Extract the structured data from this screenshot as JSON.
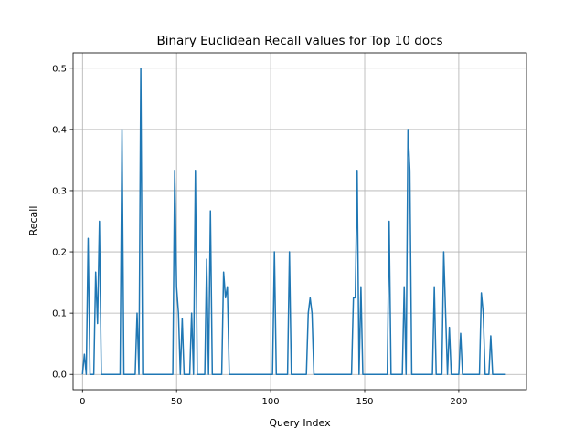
{
  "chart_data": {
    "type": "line",
    "title": "Binary Euclidean Recall values for Top 10 docs",
    "xlabel": "Query Index",
    "ylabel": "Recall",
    "xlim": [
      -5,
      236
    ],
    "ylim": [
      -0.025,
      0.525
    ],
    "grid": true,
    "legend": "none",
    "x_ticks": [
      0,
      50,
      100,
      150,
      200
    ],
    "y_ticks": [
      0.0,
      0.1,
      0.2,
      0.3,
      0.4,
      0.5
    ],
    "x_tick_labels": [
      "0",
      "50",
      "100",
      "150",
      "200"
    ],
    "y_tick_labels": [
      "0.0",
      "0.1",
      "0.2",
      "0.3",
      "0.4",
      "0.5"
    ],
    "series": [
      {
        "color": "#1f77b4",
        "points": [
          [
            0,
            0.0
          ],
          [
            1,
            0.033
          ],
          [
            2,
            0.0
          ],
          [
            3,
            0.222
          ],
          [
            4,
            0.0
          ],
          [
            5,
            0.0
          ],
          [
            6,
            0.0
          ],
          [
            7,
            0.167
          ],
          [
            8,
            0.083
          ],
          [
            9,
            0.25
          ],
          [
            10,
            0.0
          ],
          [
            11,
            0.0
          ],
          [
            12,
            0.0
          ],
          [
            13,
            0.0
          ],
          [
            14,
            0.0
          ],
          [
            15,
            0.0
          ],
          [
            16,
            0.0
          ],
          [
            17,
            0.0
          ],
          [
            18,
            0.0
          ],
          [
            19,
            0.0
          ],
          [
            20,
            0.0
          ],
          [
            21,
            0.4
          ],
          [
            22,
            0.0
          ],
          [
            23,
            0.0
          ],
          [
            24,
            0.0
          ],
          [
            25,
            0.0
          ],
          [
            26,
            0.0
          ],
          [
            27,
            0.0
          ],
          [
            28,
            0.0
          ],
          [
            29,
            0.1
          ],
          [
            30,
            0.0
          ],
          [
            31,
            0.5
          ],
          [
            32,
            0.0
          ],
          [
            33,
            0.0
          ],
          [
            34,
            0.0
          ],
          [
            35,
            0.0
          ],
          [
            36,
            0.0
          ],
          [
            37,
            0.0
          ],
          [
            38,
            0.0
          ],
          [
            39,
            0.0
          ],
          [
            40,
            0.0
          ],
          [
            41,
            0.0
          ],
          [
            42,
            0.0
          ],
          [
            43,
            0.0
          ],
          [
            44,
            0.0
          ],
          [
            45,
            0.0
          ],
          [
            46,
            0.0
          ],
          [
            47,
            0.0
          ],
          [
            48,
            0.0
          ],
          [
            49,
            0.333
          ],
          [
            50,
            0.143
          ],
          [
            51,
            0.1
          ],
          [
            52,
            0.0
          ],
          [
            53,
            0.091
          ],
          [
            54,
            0.0
          ],
          [
            55,
            0.0
          ],
          [
            56,
            0.0
          ],
          [
            57,
            0.0
          ],
          [
            58,
            0.1
          ],
          [
            59,
            0.0
          ],
          [
            60,
            0.333
          ],
          [
            61,
            0.0
          ],
          [
            62,
            0.0
          ],
          [
            63,
            0.0
          ],
          [
            64,
            0.0
          ],
          [
            65,
            0.0
          ],
          [
            66,
            0.188
          ],
          [
            67,
            0.0
          ],
          [
            68,
            0.267
          ],
          [
            69,
            0.0
          ],
          [
            70,
            0.0
          ],
          [
            71,
            0.0
          ],
          [
            72,
            0.0
          ],
          [
            73,
            0.0
          ],
          [
            74,
            0.0
          ],
          [
            75,
            0.167
          ],
          [
            76,
            0.125
          ],
          [
            77,
            0.143
          ],
          [
            78,
            0.0
          ],
          [
            79,
            0.0
          ],
          [
            80,
            0.0
          ],
          [
            81,
            0.0
          ],
          [
            82,
            0.0
          ],
          [
            83,
            0.0
          ],
          [
            84,
            0.0
          ],
          [
            85,
            0.0
          ],
          [
            86,
            0.0
          ],
          [
            87,
            0.0
          ],
          [
            88,
            0.0
          ],
          [
            89,
            0.0
          ],
          [
            90,
            0.0
          ],
          [
            91,
            0.0
          ],
          [
            92,
            0.0
          ],
          [
            93,
            0.0
          ],
          [
            94,
            0.0
          ],
          [
            95,
            0.0
          ],
          [
            96,
            0.0
          ],
          [
            97,
            0.0
          ],
          [
            98,
            0.0
          ],
          [
            99,
            0.0
          ],
          [
            100,
            0.0
          ],
          [
            101,
            0.0
          ],
          [
            102,
            0.2
          ],
          [
            103,
            0.0
          ],
          [
            104,
            0.0
          ],
          [
            105,
            0.0
          ],
          [
            106,
            0.0
          ],
          [
            107,
            0.0
          ],
          [
            108,
            0.0
          ],
          [
            109,
            0.0
          ],
          [
            110,
            0.2
          ],
          [
            111,
            0.0
          ],
          [
            112,
            0.0
          ],
          [
            113,
            0.0
          ],
          [
            114,
            0.0
          ],
          [
            115,
            0.0
          ],
          [
            116,
            0.0
          ],
          [
            117,
            0.0
          ],
          [
            118,
            0.0
          ],
          [
            119,
            0.0
          ],
          [
            120,
            0.1
          ],
          [
            121,
            0.125
          ],
          [
            122,
            0.1
          ],
          [
            123,
            0.0
          ],
          [
            124,
            0.0
          ],
          [
            125,
            0.0
          ],
          [
            126,
            0.0
          ],
          [
            127,
            0.0
          ],
          [
            128,
            0.0
          ],
          [
            129,
            0.0
          ],
          [
            130,
            0.0
          ],
          [
            131,
            0.0
          ],
          [
            132,
            0.0
          ],
          [
            133,
            0.0
          ],
          [
            134,
            0.0
          ],
          [
            135,
            0.0
          ],
          [
            136,
            0.0
          ],
          [
            137,
            0.0
          ],
          [
            138,
            0.0
          ],
          [
            139,
            0.0
          ],
          [
            140,
            0.0
          ],
          [
            141,
            0.0
          ],
          [
            142,
            0.0
          ],
          [
            143,
            0.0
          ],
          [
            144,
            0.125
          ],
          [
            145,
            0.125
          ],
          [
            146,
            0.333
          ],
          [
            147,
            0.0
          ],
          [
            148,
            0.143
          ],
          [
            149,
            0.0
          ],
          [
            150,
            0.0
          ],
          [
            151,
            0.0
          ],
          [
            152,
            0.0
          ],
          [
            153,
            0.0
          ],
          [
            154,
            0.0
          ],
          [
            155,
            0.0
          ],
          [
            156,
            0.0
          ],
          [
            157,
            0.0
          ],
          [
            158,
            0.0
          ],
          [
            159,
            0.0
          ],
          [
            160,
            0.0
          ],
          [
            161,
            0.0
          ],
          [
            162,
            0.0
          ],
          [
            163,
            0.25
          ],
          [
            164,
            0.0
          ],
          [
            165,
            0.0
          ],
          [
            166,
            0.0
          ],
          [
            167,
            0.0
          ],
          [
            168,
            0.0
          ],
          [
            169,
            0.0
          ],
          [
            170,
            0.0
          ],
          [
            171,
            0.143
          ],
          [
            172,
            0.0
          ],
          [
            173,
            0.4
          ],
          [
            174,
            0.333
          ],
          [
            175,
            0.0
          ],
          [
            176,
            0.0
          ],
          [
            177,
            0.0
          ],
          [
            178,
            0.0
          ],
          [
            179,
            0.0
          ],
          [
            180,
            0.0
          ],
          [
            181,
            0.0
          ],
          [
            182,
            0.0
          ],
          [
            183,
            0.0
          ],
          [
            184,
            0.0
          ],
          [
            185,
            0.0
          ],
          [
            186,
            0.0
          ],
          [
            187,
            0.143
          ],
          [
            188,
            0.0
          ],
          [
            189,
            0.0
          ],
          [
            190,
            0.0
          ],
          [
            191,
            0.0
          ],
          [
            192,
            0.2
          ],
          [
            193,
            0.1
          ],
          [
            194,
            0.0
          ],
          [
            195,
            0.077
          ],
          [
            196,
            0.0
          ],
          [
            197,
            0.0
          ],
          [
            198,
            0.0
          ],
          [
            199,
            0.0
          ],
          [
            200,
            0.0
          ],
          [
            201,
            0.067
          ],
          [
            202,
            0.0
          ],
          [
            203,
            0.0
          ],
          [
            204,
            0.0
          ],
          [
            205,
            0.0
          ],
          [
            206,
            0.0
          ],
          [
            207,
            0.0
          ],
          [
            208,
            0.0
          ],
          [
            209,
            0.0
          ],
          [
            210,
            0.0
          ],
          [
            211,
            0.0
          ],
          [
            212,
            0.133
          ],
          [
            213,
            0.1
          ],
          [
            214,
            0.0
          ],
          [
            215,
            0.0
          ],
          [
            216,
            0.0
          ],
          [
            217,
            0.063
          ],
          [
            218,
            0.0
          ],
          [
            219,
            0.0
          ],
          [
            220,
            0.0
          ],
          [
            221,
            0.0
          ],
          [
            222,
            0.0
          ],
          [
            223,
            0.0
          ],
          [
            224,
            0.0
          ],
          [
            225,
            0.0
          ]
        ]
      }
    ]
  }
}
